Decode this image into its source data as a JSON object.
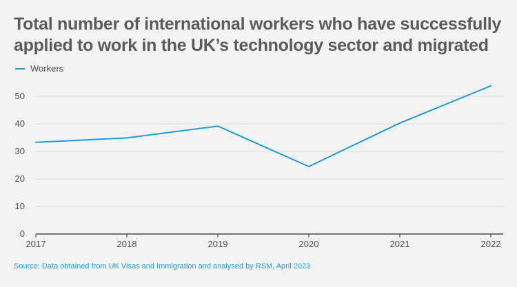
{
  "title": "Total number of international workers who have successfully applied to work in the UK’s technology sector and migrated",
  "source": "Source: Data obtained from UK Visas and Immigration and analysed by RSM, April 2023",
  "colors": {
    "line": "#1e9bd7",
    "grid": "#dcdcdc",
    "axis": "#2b2b2b",
    "text": "#4a4a4a",
    "background": "#f3f3f3"
  },
  "chart_data": {
    "type": "line",
    "categories": [
      "2017",
      "2018",
      "2019",
      "2020",
      "2021",
      "2022"
    ],
    "series": [
      {
        "name": "Workers",
        "values": [
          33.3,
          34.9,
          39.2,
          24.5,
          40.3,
          53.8
        ],
        "color": "#1e9bd7"
      }
    ],
    "y_ticks": [
      0,
      10,
      20,
      30,
      40,
      50
    ],
    "ylim": [
      0,
      55
    ],
    "grid": true,
    "legend": "top-left"
  }
}
